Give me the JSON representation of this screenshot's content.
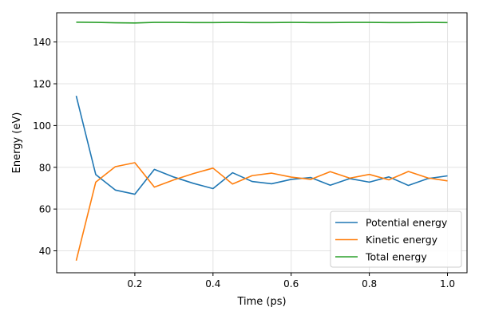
{
  "chart_data": {
    "type": "line",
    "xlabel": "Time (ps)",
    "ylabel": "Energy (eV)",
    "xlim": [
      0.0,
      1.05
    ],
    "ylim": [
      29.5,
      154.0
    ],
    "xticks": [
      0.2,
      0.4,
      0.6,
      0.8,
      1.0
    ],
    "xtick_labels": [
      "0.2",
      "0.4",
      "0.6",
      "0.8",
      "1.0"
    ],
    "yticks": [
      40,
      60,
      80,
      100,
      120,
      140
    ],
    "ytick_labels": [
      "40",
      "60",
      "80",
      "100",
      "120",
      "140"
    ],
    "grid": true,
    "legend_position": "lower-right",
    "x": [
      0.05,
      0.1,
      0.15,
      0.2,
      0.25,
      0.3,
      0.35,
      0.4,
      0.45,
      0.5,
      0.55,
      0.6,
      0.65,
      0.7,
      0.75,
      0.8,
      0.85,
      0.9,
      0.95,
      1.0
    ],
    "series": [
      {
        "name": "Potential energy",
        "color": "#1f77b4",
        "values": [
          114.2,
          76.5,
          69.1,
          67.1,
          79.0,
          75.3,
          72.3,
          69.8,
          77.4,
          73.2,
          72.1,
          74.2,
          75.1,
          71.4,
          74.6,
          72.9,
          75.4,
          71.3,
          74.6,
          75.9
        ]
      },
      {
        "name": "Kinetic energy",
        "color": "#ff7f0e",
        "values": [
          35.3,
          72.9,
          80.3,
          82.2,
          70.5,
          74.0,
          77.0,
          79.6,
          72.0,
          76.0,
          77.2,
          75.3,
          74.2,
          77.9,
          74.8,
          76.6,
          74.0,
          78.0,
          74.9,
          73.5
        ]
      },
      {
        "name": "Total energy",
        "color": "#2ca02c",
        "values": [
          149.5,
          149.4,
          149.2,
          149.1,
          149.4,
          149.4,
          149.3,
          149.3,
          149.4,
          149.3,
          149.3,
          149.4,
          149.3,
          149.3,
          149.4,
          149.4,
          149.3,
          149.3,
          149.4,
          149.3
        ]
      }
    ]
  }
}
